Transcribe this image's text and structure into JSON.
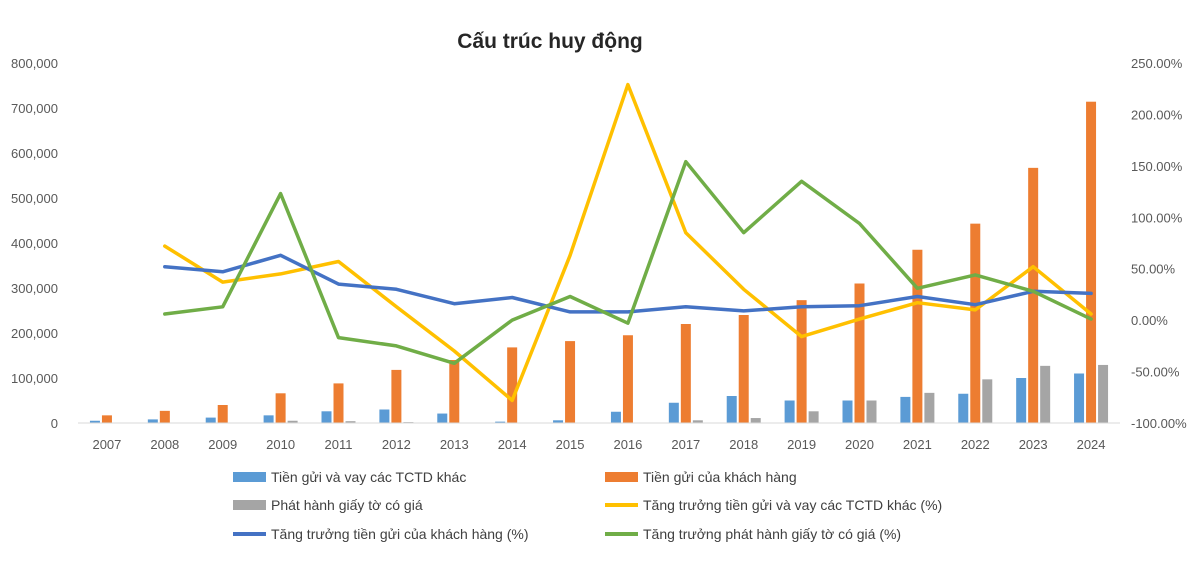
{
  "chart_data": {
    "type": "bar",
    "title": "Cấu trúc huy động",
    "categories": [
      "2007",
      "2008",
      "2009",
      "2010",
      "2011",
      "2012",
      "2013",
      "2014",
      "2015",
      "2016",
      "2017",
      "2018",
      "2019",
      "2020",
      "2021",
      "2022",
      "2023",
      "2024"
    ],
    "y_left": {
      "min": 0,
      "max": 800000,
      "step": 100000,
      "tick_labels": [
        "0",
        "100,000",
        "200,000",
        "300,000",
        "400,000",
        "500,000",
        "600,000",
        "700,000",
        "800,000"
      ]
    },
    "y_right": {
      "min": -100,
      "max": 250,
      "step": 50,
      "tick_labels": [
        "-100.00%",
        "-50.00%",
        "0.00%",
        "50.00%",
        "100.00%",
        "150.00%",
        "200.00%",
        "250.00%"
      ]
    },
    "bar_series": [
      {
        "name": "Tiền gửi và vay các TCTD khác",
        "color": "#5B9BD5",
        "values": [
          5000,
          8000,
          12000,
          17000,
          26000,
          30000,
          21000,
          3000,
          6000,
          25000,
          45000,
          60000,
          50000,
          50000,
          58000,
          65000,
          100000,
          110000
        ]
      },
      {
        "name": "Tiền gửi của khách hàng",
        "color": "#ED7D31",
        "values": [
          17000,
          27000,
          40000,
          66000,
          88000,
          118000,
          140000,
          168000,
          182000,
          195000,
          220000,
          240000,
          273000,
          310000,
          385000,
          443000,
          567000,
          714000
        ]
      },
      {
        "name": "Phát hành giấy tờ có giá",
        "color": "#A5A5A5",
        "values": [
          0,
          0,
          0,
          5000,
          4000,
          2000,
          0,
          0,
          0,
          0,
          6000,
          11000,
          26000,
          50000,
          67000,
          97000,
          127000,
          129000
        ]
      }
    ],
    "line_series": [
      {
        "name": "Tăng trưởng tiền gửi và vay các TCTD khác (%)",
        "color": "#FFC000",
        "values": [
          null,
          72,
          37,
          45,
          57,
          13,
          -30,
          -78,
          63,
          229,
          85,
          30,
          -16,
          1,
          17,
          10,
          52,
          6
        ]
      },
      {
        "name": "Tăng trưởng tiền gửi của khách hàng (%)",
        "color": "#4472C4",
        "values": [
          null,
          52,
          47,
          63,
          35,
          30,
          16,
          22,
          8,
          8,
          13,
          9,
          13,
          14,
          23,
          15,
          28,
          26
        ]
      },
      {
        "name": "Tăng trưởng phát hành giấy tờ có giá (%)",
        "color": "#70AD47",
        "values": [
          null,
          6,
          13,
          123,
          -17,
          -25,
          -42,
          0,
          23,
          -3,
          154,
          85,
          135,
          94,
          31,
          44,
          28,
          1
        ]
      }
    ],
    "legend_position": "bottom",
    "grid": false
  }
}
